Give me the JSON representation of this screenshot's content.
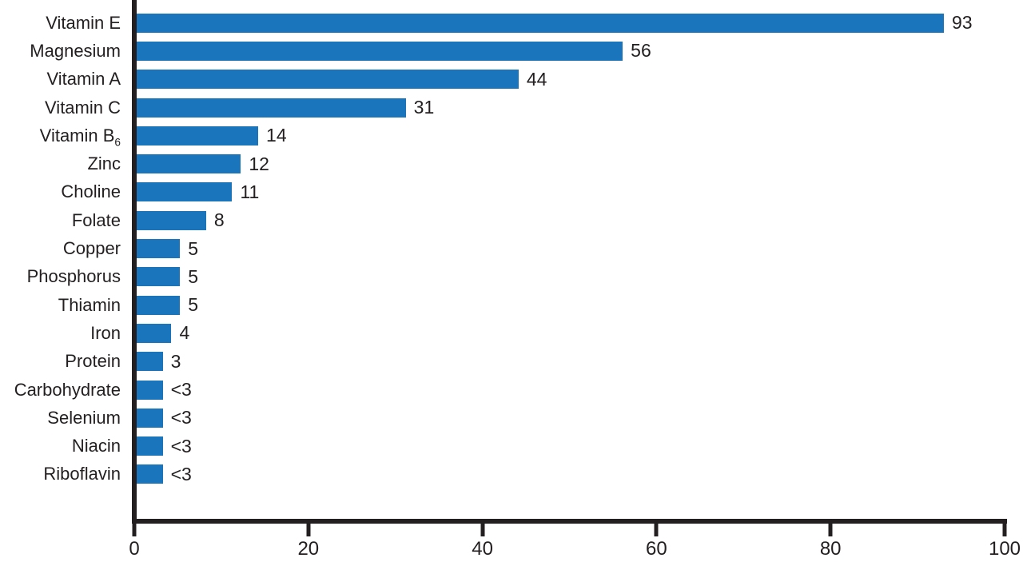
{
  "chart_data": {
    "type": "bar",
    "orientation": "horizontal",
    "title": "",
    "xlabel": "",
    "ylabel": "",
    "xlim": [
      0,
      100
    ],
    "x_ticks": [
      0,
      20,
      40,
      60,
      80,
      100
    ],
    "grid": false,
    "legend": "none",
    "bar_color": "#1b75bc",
    "axis_color": "#231f20",
    "categories": [
      "Vitamin E",
      "Magnesium",
      "Vitamin A",
      "Vitamin C",
      "Vitamin B6",
      "Zinc",
      "Choline",
      "Folate",
      "Copper",
      "Phosphorus",
      "Thiamin",
      "Iron",
      "Protein",
      "Carbohydrate",
      "Selenium",
      "Niacin",
      "Riboflavin"
    ],
    "values": [
      93,
      56,
      44,
      31,
      14,
      12,
      11,
      8,
      5,
      5,
      5,
      4,
      3,
      3,
      3,
      3,
      3
    ],
    "rows": [
      {
        "label": "Vitamin E",
        "value": 93,
        "display": "93"
      },
      {
        "label": "Magnesium",
        "value": 56,
        "display": "56"
      },
      {
        "label": "Vitamin A",
        "value": 44,
        "display": "44"
      },
      {
        "label": "Vitamin C",
        "value": 31,
        "display": "31"
      },
      {
        "label": "Vitamin B",
        "label_sub": "6",
        "value": 14,
        "display": "14"
      },
      {
        "label": "Zinc",
        "value": 12,
        "display": "12"
      },
      {
        "label": "Choline",
        "value": 11,
        "display": "11"
      },
      {
        "label": "Folate",
        "value": 8,
        "display": "8"
      },
      {
        "label": "Copper",
        "value": 5,
        "display": "5"
      },
      {
        "label": "Phosphorus",
        "value": 5,
        "display": "5"
      },
      {
        "label": "Thiamin",
        "value": 5,
        "display": "5"
      },
      {
        "label": "Iron",
        "value": 4,
        "display": "4"
      },
      {
        "label": "Protein",
        "value": 3,
        "display": "3"
      },
      {
        "label": "Carbohydrate",
        "value": 3,
        "display": "<3"
      },
      {
        "label": "Selenium",
        "value": 3,
        "display": "<3"
      },
      {
        "label": "Niacin",
        "value": 3,
        "display": "<3"
      },
      {
        "label": "Riboflavin",
        "value": 3,
        "display": "<3"
      }
    ]
  }
}
